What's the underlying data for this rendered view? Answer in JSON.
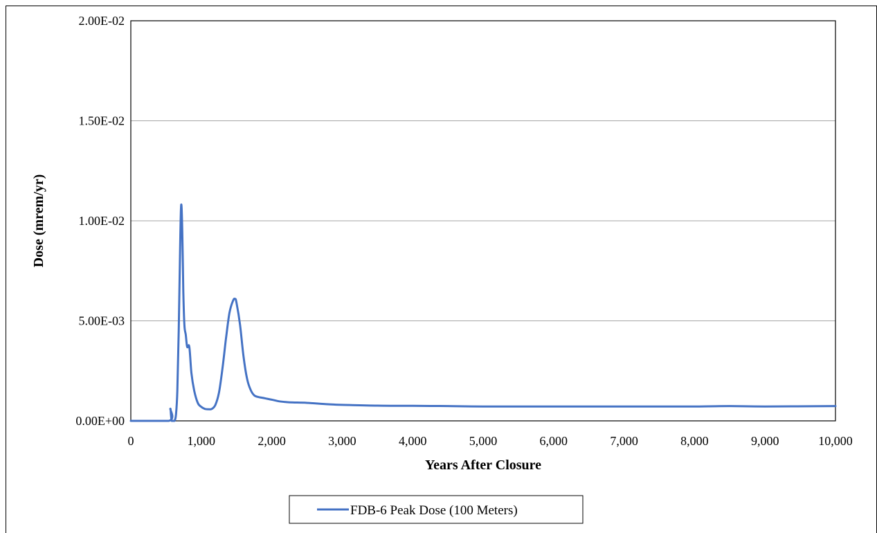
{
  "chart_data": {
    "type": "line",
    "xlabel": "Years After Closure",
    "ylabel": "Dose (mrem/yr)",
    "xlim": [
      0,
      10000
    ],
    "ylim": [
      0,
      0.02
    ],
    "x_ticks": [
      0,
      1000,
      2000,
      3000,
      4000,
      5000,
      6000,
      7000,
      8000,
      9000,
      10000
    ],
    "x_tick_labels": [
      "0",
      "1,000",
      "2,000",
      "3,000",
      "4,000",
      "5,000",
      "6,000",
      "7,000",
      "8,000",
      "9,000",
      "10,000"
    ],
    "y_ticks": [
      0,
      0.005,
      0.01,
      0.015,
      0.02
    ],
    "y_tick_labels": [
      "0.00E+00",
      "5.00E-03",
      "1.00E-02",
      "1.50E-02",
      "2.00E-02"
    ],
    "grid": "horizontal",
    "legend_position": "bottom",
    "series": [
      {
        "name": "FDB-6 Peak Dose (100 Meters)",
        "color": "#4472C4",
        "x": [
          0,
          540,
          560,
          570,
          580,
          600,
          620,
          640,
          660,
          680,
          700,
          715,
          730,
          745,
          760,
          780,
          800,
          830,
          860,
          900,
          950,
          1000,
          1050,
          1100,
          1150,
          1200,
          1250,
          1300,
          1350,
          1400,
          1450,
          1480,
          1500,
          1550,
          1600,
          1650,
          1700,
          1750,
          1800,
          1900,
          2000,
          2100,
          2200,
          2300,
          2500,
          2800,
          3000,
          3500,
          4000,
          4500,
          5000,
          6000,
          7000,
          8000,
          8500,
          9000,
          10000
        ],
        "y": [
          0.0,
          0.0,
          0.0006,
          0.0003,
          0.0,
          0.0,
          0.0,
          0.0003,
          0.0015,
          0.0045,
          0.0088,
          0.0108,
          0.0095,
          0.0065,
          0.0048,
          0.0043,
          0.0037,
          0.0037,
          0.0024,
          0.0015,
          0.0009,
          0.0007,
          0.0006,
          0.00058,
          0.0006,
          0.0008,
          0.0014,
          0.0026,
          0.0041,
          0.0054,
          0.006,
          0.0061,
          0.0059,
          0.0048,
          0.0032,
          0.0021,
          0.00155,
          0.00128,
          0.0012,
          0.00113,
          0.00106,
          0.00098,
          0.00094,
          0.00092,
          0.0009,
          0.00083,
          0.0008,
          0.00076,
          0.00075,
          0.00074,
          0.00072,
          0.00072,
          0.00072,
          0.00072,
          0.00074,
          0.00072,
          0.00074
        ]
      }
    ]
  }
}
